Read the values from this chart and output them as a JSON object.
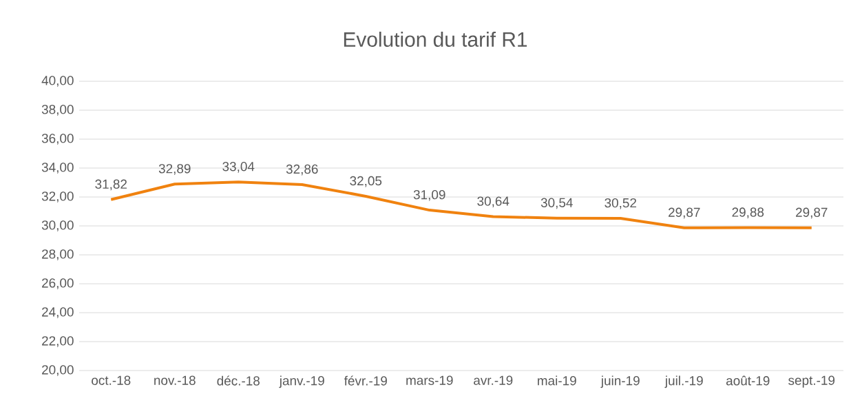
{
  "chart_data": {
    "type": "line",
    "title": "Evolution du tarif R1",
    "categories": [
      "oct.-18",
      "nov.-18",
      "déc.-18",
      "janv.-19",
      "févr.-19",
      "mars-19",
      "avr.-19",
      "mai-19",
      "juin-19",
      "juil.-19",
      "août-19",
      "sept.-19"
    ],
    "values": [
      31.82,
      32.89,
      33.04,
      32.86,
      32.05,
      31.09,
      30.64,
      30.54,
      30.52,
      29.87,
      29.88,
      29.87
    ],
    "value_labels": [
      "31,82",
      "32,89",
      "33,04",
      "32,86",
      "32,05",
      "31,09",
      "30,64",
      "30,54",
      "30,52",
      "29,87",
      "29,88",
      "29,87"
    ],
    "color": "#f0820f",
    "ylim": [
      20,
      40
    ],
    "yticks": [
      {
        "value": 20,
        "label": "20,00"
      },
      {
        "value": 22,
        "label": "22,00"
      },
      {
        "value": 24,
        "label": "24,00"
      },
      {
        "value": 26,
        "label": "26,00"
      },
      {
        "value": 28,
        "label": "28,00"
      },
      {
        "value": 30,
        "label": "30,00"
      },
      {
        "value": 32,
        "label": "32,00"
      },
      {
        "value": 34,
        "label": "34,00"
      },
      {
        "value": 36,
        "label": "36,00"
      },
      {
        "value": 38,
        "label": "38,00"
      },
      {
        "value": 40,
        "label": "40,00"
      }
    ],
    "grid": "y",
    "marker": "none",
    "line_style": "solid"
  }
}
